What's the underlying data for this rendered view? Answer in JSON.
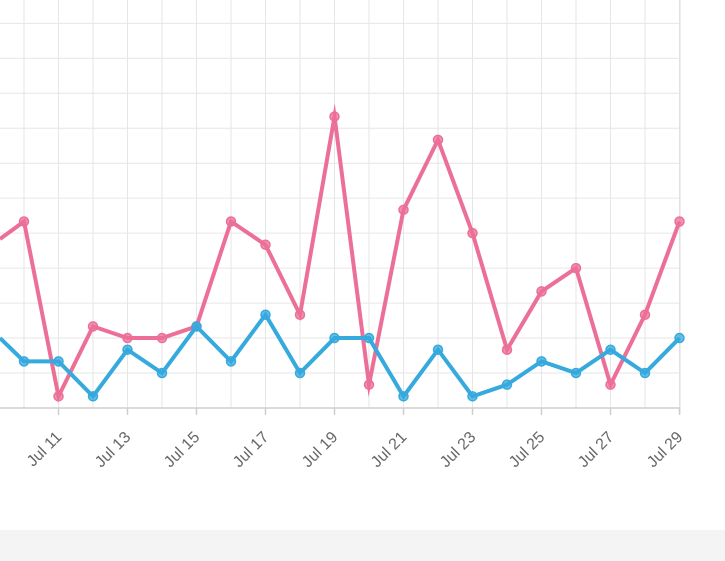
{
  "chart_data": {
    "type": "line",
    "title": "",
    "xlabel": "",
    "ylabel": "",
    "x": [
      "Jul 10",
      "Jul 11",
      "Jul 12",
      "Jul 13",
      "Jul 14",
      "Jul 15",
      "Jul 16",
      "Jul 17",
      "Jul 18",
      "Jul 19",
      "Jul 20",
      "Jul 21",
      "Jul 22",
      "Jul 23",
      "Jul 24",
      "Jul 25",
      "Jul 26",
      "Jul 27",
      "Jul 28",
      "Jul 29"
    ],
    "tick_labels": [
      "Jul 11",
      "Jul 13",
      "Jul 15",
      "Jul 17",
      "Jul 19",
      "Jul 21",
      "Jul 23",
      "Jul 25",
      "Jul 27",
      "Jul 29"
    ],
    "ylim": [
      0,
      35
    ],
    "grid": true,
    "series": [
      {
        "name": "series-pink",
        "color": "#ec6f97",
        "lead_in": 14.5,
        "values": [
          16,
          1,
          7,
          6,
          6,
          7,
          16,
          14,
          8,
          25,
          2,
          17,
          23,
          15,
          5,
          10,
          12,
          2,
          8,
          16
        ]
      },
      {
        "name": "series-blue",
        "color": "#36a9dd",
        "lead_in": 6,
        "values": [
          4,
          4,
          1,
          5,
          3,
          7,
          4,
          8,
          3,
          6,
          6,
          1,
          5,
          1,
          2,
          4,
          3,
          5,
          3,
          6
        ]
      }
    ]
  }
}
